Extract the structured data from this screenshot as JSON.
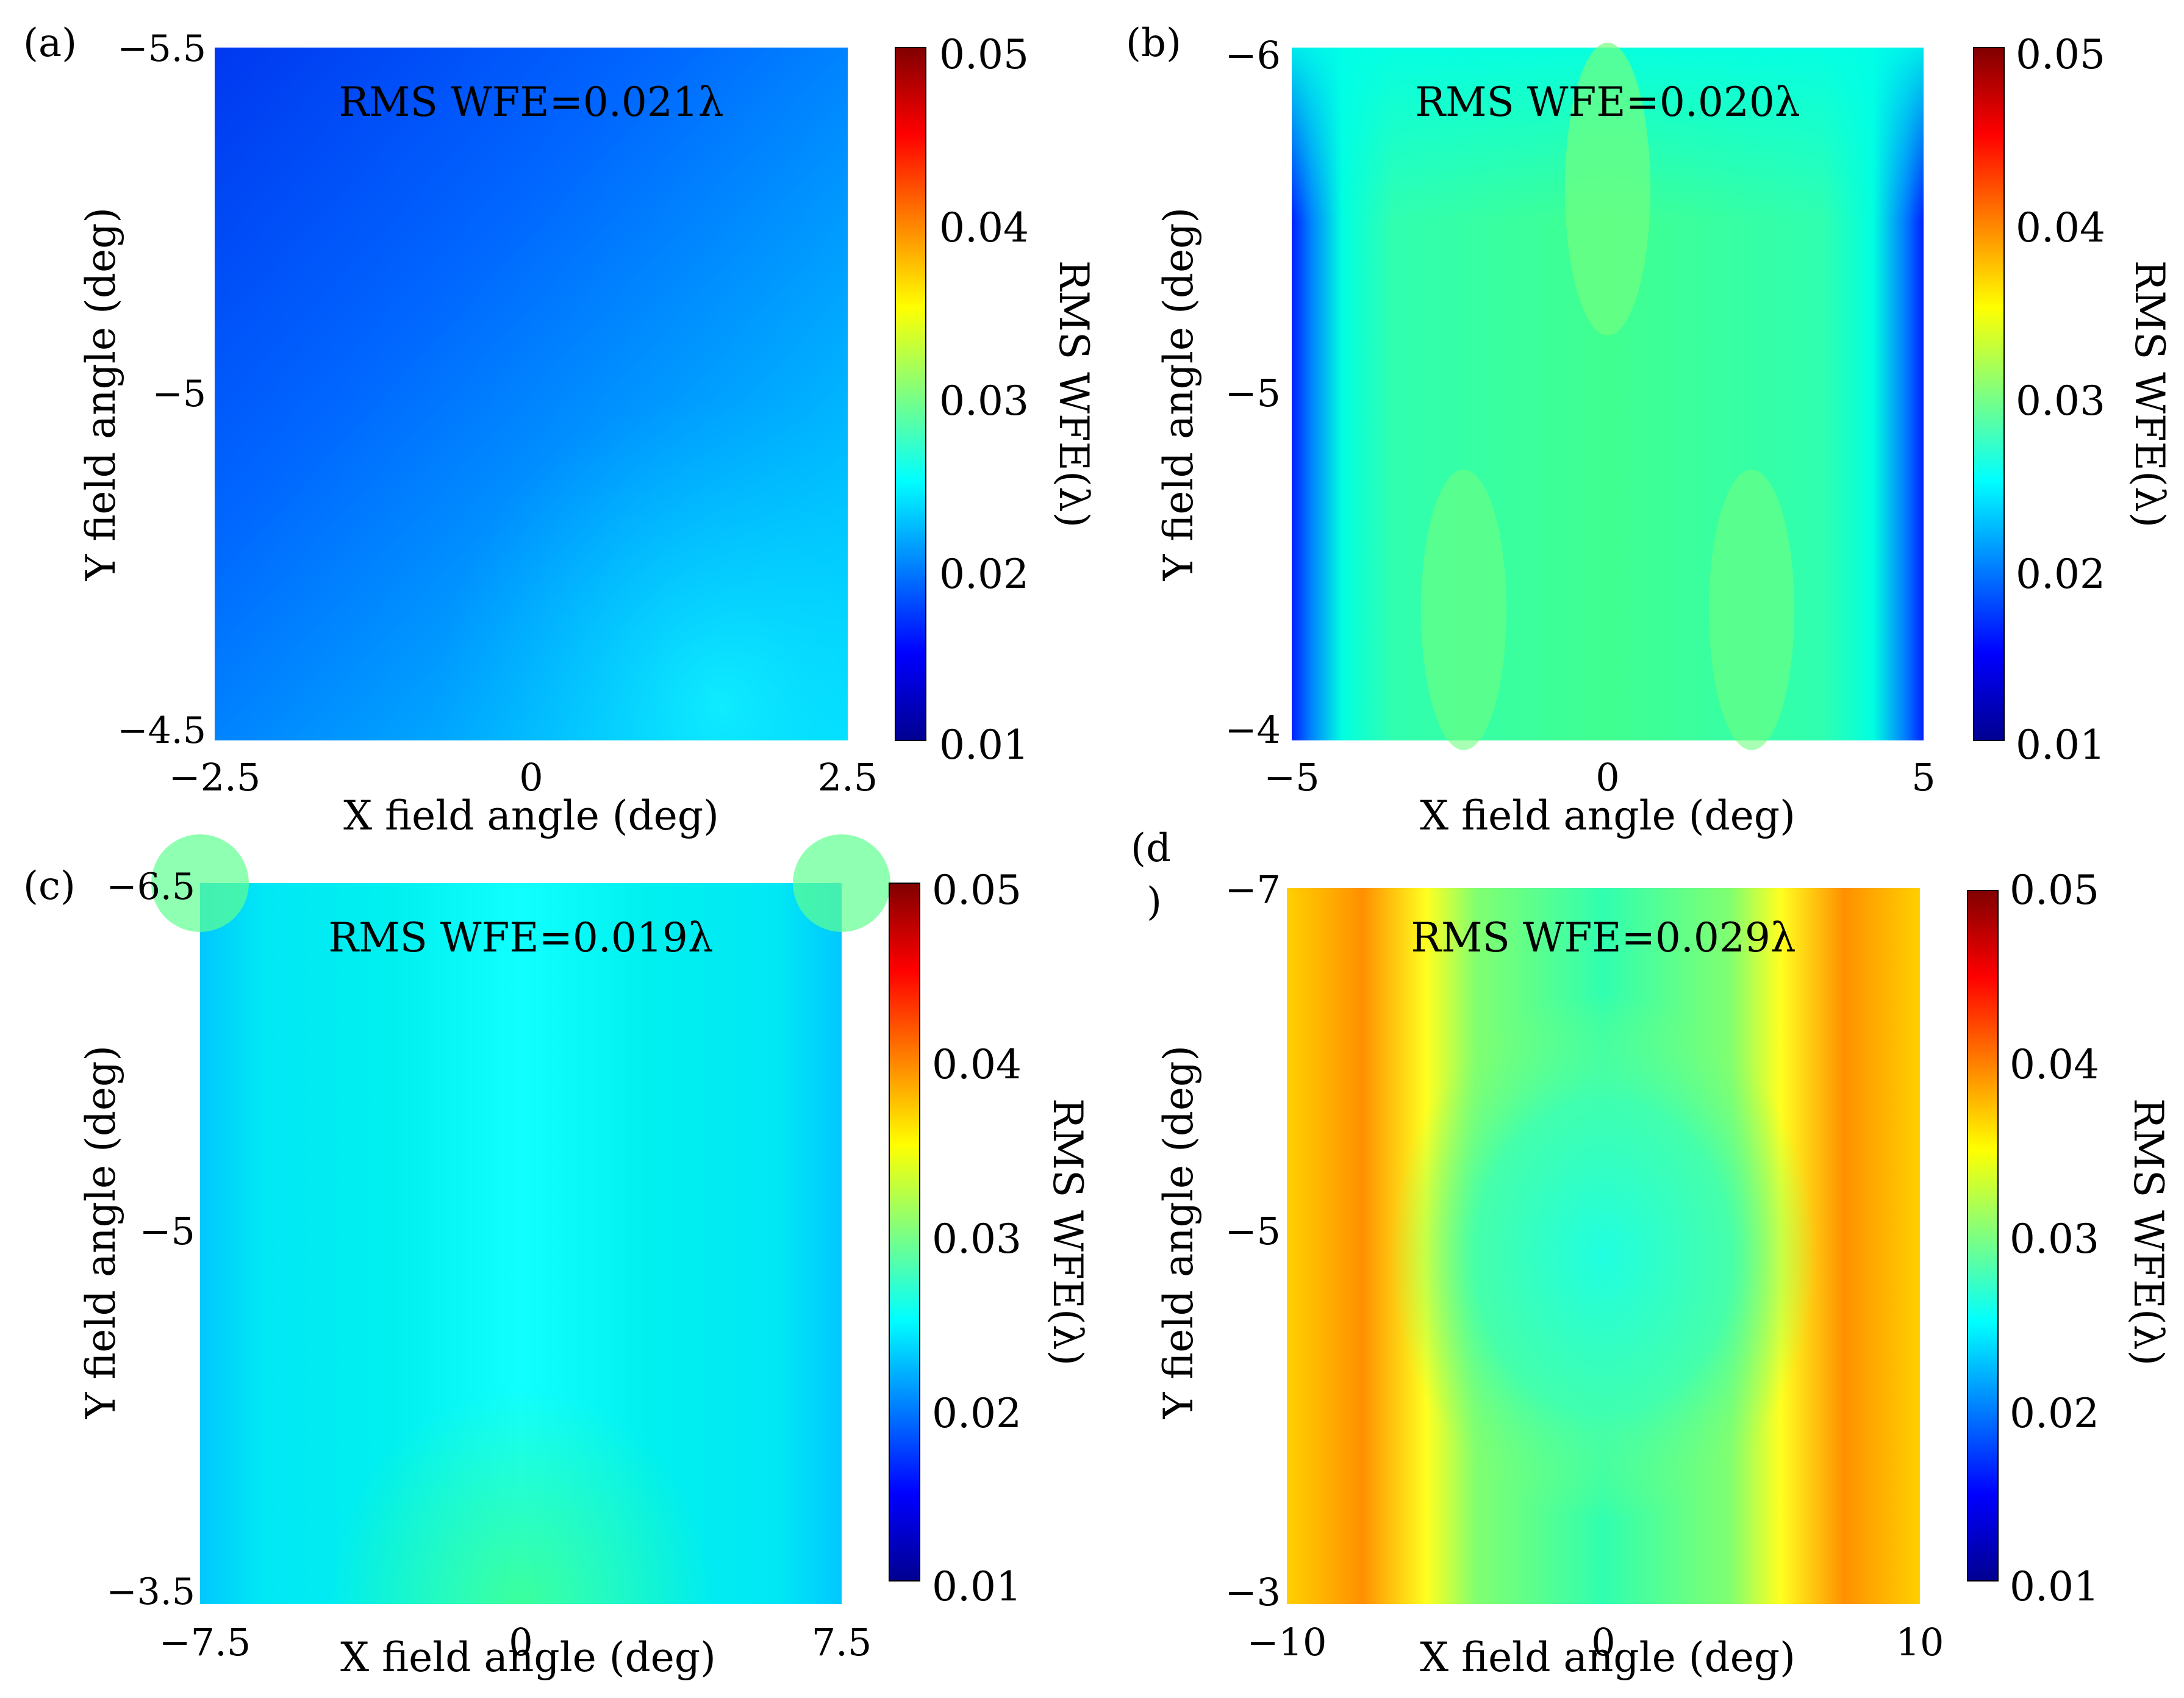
{
  "figure": {
    "description_free": true
  },
  "colormap": {
    "name": "jet",
    "stops": [
      "#00008f",
      "#0000ff",
      "#00ffff",
      "#7fff7f",
      "#ffff00",
      "#ff0000",
      "#800000"
    ]
  },
  "chart_data": [
    {
      "type": "heatmap",
      "panel_label": "(a)",
      "annotation": "RMS WFE=0.021λ",
      "xlabel": "X field angle (deg)",
      "ylabel": "Y field angle (deg)",
      "xlim": [
        -2.5,
        2.5
      ],
      "ylim": [
        -5.5,
        -4.5
      ],
      "xticks": [
        "−2.5",
        "0",
        "2.5"
      ],
      "yticks": [
        "−5.5",
        "−5",
        "−4.5"
      ],
      "colorbar": {
        "label": "RMS WFE(λ)",
        "range": [
          0.01,
          0.05
        ],
        "ticks": [
          "0.01",
          "0.02",
          "0.03",
          "0.04",
          "0.05"
        ]
      },
      "value_range_shown": [
        0.015,
        0.025
      ]
    },
    {
      "type": "heatmap",
      "panel_label": "(b)",
      "annotation": "RMS WFE=0.020λ",
      "xlabel": "X field angle (deg)",
      "ylabel": "Y field angle (deg)",
      "xlim": [
        -5,
        5
      ],
      "ylim": [
        -6,
        -4
      ],
      "xticks": [
        "−5",
        "0",
        "5"
      ],
      "yticks": [
        "−6",
        "−5",
        "−4"
      ],
      "colorbar": {
        "label": "RMS WFE(λ)",
        "range": [
          0.01,
          0.05
        ],
        "ticks": [
          "0.01",
          "0.02",
          "0.03",
          "0.04",
          "0.05"
        ]
      },
      "value_range_shown": [
        0.015,
        0.031
      ]
    },
    {
      "type": "heatmap",
      "panel_label": "(c)",
      "annotation": "RMS WFE=0.019λ",
      "xlabel": "X field angle (deg)",
      "ylabel": "Y field angle (deg)",
      "xlim": [
        -7.5,
        7.5
      ],
      "ylim": [
        -6.5,
        -3.5
      ],
      "xticks": [
        "−7.5",
        "0",
        "7.5"
      ],
      "yticks": [
        "−6.5",
        "−5",
        "−3.5"
      ],
      "colorbar": {
        "label": "RMS WFE(λ)",
        "range": [
          0.01,
          0.05
        ],
        "ticks": [
          "0.01",
          "0.02",
          "0.03",
          "0.04",
          "0.05"
        ]
      },
      "value_range_shown": [
        0.023,
        0.031
      ]
    },
    {
      "type": "heatmap",
      "panel_label_lines": [
        "(d",
        ")"
      ],
      "annotation": "RMS WFE=0.029λ",
      "xlabel": "X field angle (deg)",
      "ylabel": "Y field angle (deg)",
      "xlim": [
        -10,
        10
      ],
      "ylim": [
        -7,
        -3
      ],
      "xticks": [
        "−10",
        "0",
        "10"
      ],
      "yticks": [
        "−7",
        "−5",
        "−3"
      ],
      "colorbar": {
        "label": "RMS WFE(λ)",
        "range": [
          0.01,
          0.05
        ],
        "ticks": [
          "0.01",
          "0.02",
          "0.03",
          "0.04",
          "0.05"
        ]
      },
      "value_range_shown": [
        0.025,
        0.043
      ]
    }
  ]
}
